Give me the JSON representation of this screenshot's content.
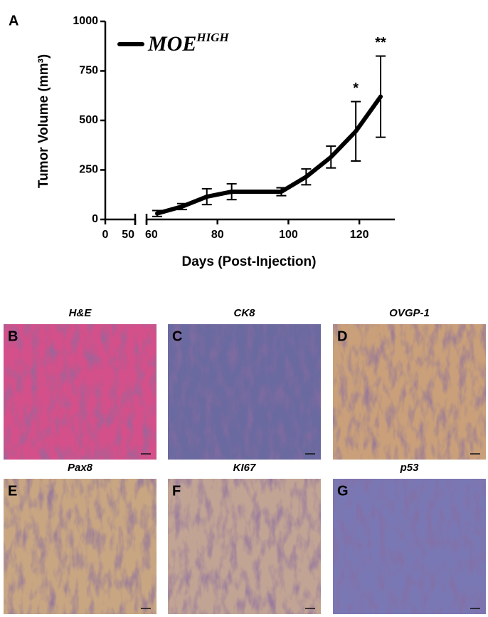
{
  "panel_label": "A",
  "chart_data": {
    "type": "line",
    "y_label": "Tumor Volume (mm³)",
    "x_label": "Days (Post-Injection)",
    "x": [
      63,
      70,
      77,
      84,
      98,
      105,
      112,
      119,
      126
    ],
    "series": [
      {
        "name": "MOE",
        "name_superscript": "HIGH",
        "color": "#000000",
        "values": [
          30,
          65,
          115,
          140,
          140,
          215,
          315,
          445,
          620
        ],
        "errors": [
          15,
          15,
          40,
          40,
          20,
          40,
          55,
          150,
          205
        ]
      }
    ],
    "annotations": [
      {
        "text": "*",
        "x": 119
      },
      {
        "text": "**",
        "x": 126
      }
    ],
    "xlim": [
      0,
      130
    ],
    "x_axis_break": [
      50,
      60
    ],
    "xticks": [
      0,
      50,
      60,
      80,
      100,
      120
    ],
    "ylim": [
      0,
      1000
    ],
    "yticks": [
      0,
      250,
      500,
      750,
      1000
    ],
    "legend": "top-left",
    "grid": false
  },
  "panels": [
    {
      "letter": "B",
      "title": "H&E"
    },
    {
      "letter": "C",
      "title": "CK8"
    },
    {
      "letter": "D",
      "title": "OVGP-1"
    },
    {
      "letter": "E",
      "title": "Pax8"
    },
    {
      "letter": "F",
      "title": "KI67"
    },
    {
      "letter": "G",
      "title": "p53"
    }
  ]
}
